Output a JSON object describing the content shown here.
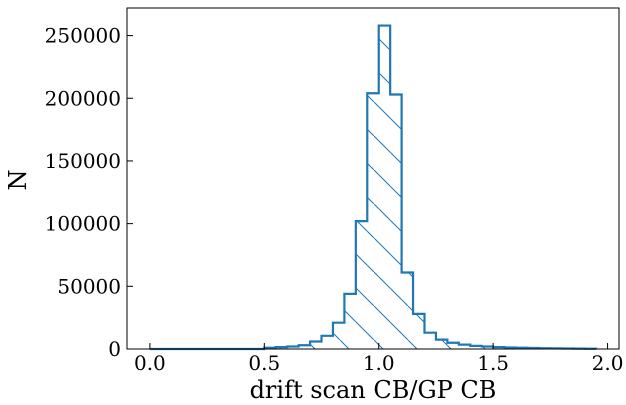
{
  "chart_data": {
    "type": "histogram",
    "xlabel": "drift scan CB/GP CB",
    "ylabel": "N",
    "xlim": [
      -0.1,
      2.05
    ],
    "ylim": [
      0,
      272000
    ],
    "bin_width": 0.05,
    "bins_x": [
      0.0,
      0.05,
      0.1,
      0.15,
      0.2,
      0.25,
      0.3,
      0.35,
      0.4,
      0.45,
      0.5,
      0.55,
      0.6,
      0.65,
      0.7,
      0.75,
      0.8,
      0.85,
      0.9,
      0.95,
      1.0,
      1.05,
      1.1,
      1.15,
      1.2,
      1.25,
      1.3,
      1.35,
      1.4,
      1.45,
      1.5,
      1.55,
      1.6,
      1.65,
      1.7,
      1.75,
      1.8,
      1.85,
      1.9
    ],
    "counts": [
      0,
      0,
      0,
      0,
      0,
      0,
      0,
      0,
      0,
      0,
      1000,
      1500,
      2000,
      3000,
      6000,
      10500,
      21000,
      44000,
      102000,
      204000,
      258000,
      203000,
      61000,
      28000,
      13000,
      7500,
      5000,
      3500,
      2500,
      2000,
      1500,
      1200,
      1000,
      800,
      600,
      500,
      400,
      300,
      200
    ],
    "xticks": [
      0.0,
      0.5,
      1.0,
      1.5,
      2.0
    ],
    "xtick_labels": [
      "0.0",
      "0.5",
      "1.0",
      "1.5",
      "2.0"
    ],
    "yticks": [
      0,
      50000,
      100000,
      150000,
      200000,
      250000
    ],
    "ytick_labels": [
      "0",
      "50000",
      "100000",
      "150000",
      "200000",
      "250000"
    ],
    "style": {
      "color": "#1f77b4",
      "fill": "hatch",
      "hatch": "\\"
    },
    "grid": false,
    "legend": "none"
  }
}
